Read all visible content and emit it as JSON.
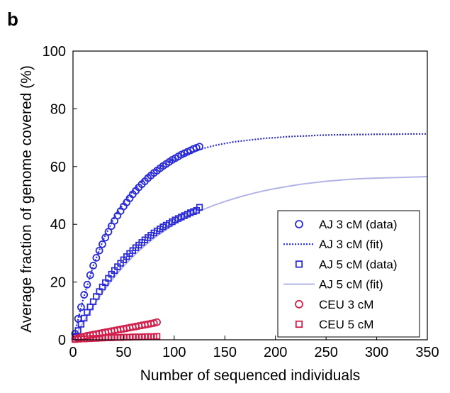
{
  "panel_label": "b",
  "chart_data": {
    "type": "scatter",
    "xlabel": "Number of sequenced individuals",
    "ylabel": "Average fraction of genome covered (%)",
    "xlim": [
      0,
      350
    ],
    "ylim": [
      0,
      100
    ],
    "xticks": [
      0,
      50,
      100,
      150,
      200,
      250,
      300,
      350
    ],
    "yticks": [
      0,
      20,
      40,
      60,
      80,
      100
    ],
    "grid": false,
    "legend_position": "bottom-right",
    "series": [
      {
        "name": "AJ 3 cM (data)",
        "kind": "marker",
        "marker": "circle",
        "color": "#2b2bd6",
        "x": [
          2,
          5,
          8,
          11,
          14,
          17,
          20,
          23,
          26,
          29,
          32,
          35,
          38,
          41,
          44,
          47,
          50,
          53,
          56,
          59,
          62,
          65,
          68,
          71,
          74,
          77,
          80,
          83,
          86,
          89,
          92,
          95,
          98,
          101,
          104,
          107,
          110,
          113,
          116,
          119,
          122,
          125
        ],
        "y": [
          2.1,
          7.3,
          11.3,
          15.6,
          19.1,
          22.4,
          25.7,
          28.4,
          30.9,
          33.1,
          35.4,
          37.4,
          39.4,
          41.2,
          43.0,
          44.6,
          46.2,
          47.6,
          49.0,
          50.4,
          51.6,
          52.8,
          53.9,
          54.9,
          56.0,
          56.9,
          57.8,
          58.6,
          59.4,
          60.2,
          60.9,
          61.6,
          62.3,
          62.9,
          63.5,
          64.1,
          64.6,
          65.1,
          65.6,
          66.1,
          66.5,
          66.9
        ]
      },
      {
        "name": "AJ 3 cM (fit)",
        "kind": "line",
        "style": "dotted",
        "color": "#2b2bd6",
        "x": [
          0,
          10,
          20,
          30,
          40,
          50,
          60,
          70,
          80,
          90,
          100,
          110,
          120,
          130,
          140,
          150,
          160,
          170,
          180,
          190,
          200,
          210,
          220,
          230,
          240,
          250,
          260,
          270,
          280,
          290,
          300,
          310,
          320,
          330,
          340,
          350
        ],
        "y": [
          0,
          14.0,
          25.6,
          34.7,
          41.8,
          47.4,
          52.0,
          55.6,
          58.5,
          60.8,
          62.7,
          64.2,
          65.4,
          66.4,
          67.3,
          68.0,
          68.6,
          69.0,
          69.4,
          69.8,
          70.0,
          70.3,
          70.5,
          70.6,
          70.8,
          70.9,
          71.0,
          71.0,
          71.1,
          71.1,
          71.2,
          71.2,
          71.2,
          71.3,
          71.3,
          71.3
        ]
      },
      {
        "name": "AJ 5 cM (data)",
        "kind": "marker",
        "marker": "square",
        "color": "#2b2bd6",
        "x": [
          2,
          5,
          8,
          11,
          14,
          17,
          20,
          23,
          26,
          29,
          32,
          35,
          38,
          41,
          44,
          47,
          50,
          53,
          56,
          59,
          62,
          65,
          68,
          71,
          74,
          77,
          80,
          83,
          86,
          89,
          92,
          95,
          98,
          101,
          104,
          107,
          110,
          113,
          116,
          119,
          122,
          125
        ],
        "y": [
          1.0,
          3.2,
          5.4,
          7.5,
          9.5,
          11.4,
          13.2,
          15.0,
          16.7,
          18.3,
          19.8,
          21.3,
          22.7,
          24.0,
          25.3,
          26.5,
          27.7,
          28.8,
          29.9,
          30.9,
          31.9,
          32.8,
          33.7,
          34.6,
          35.4,
          36.2,
          37.0,
          37.7,
          38.4,
          39.1,
          39.7,
          40.3,
          40.9,
          41.5,
          42.0,
          42.5,
          43.0,
          43.5,
          44.0,
          44.4,
          44.8,
          45.9
        ]
      },
      {
        "name": "AJ 5 cM (fit)",
        "kind": "line",
        "style": "solid",
        "color": "#b3b3e6",
        "x": [
          0,
          10,
          20,
          30,
          40,
          50,
          60,
          70,
          80,
          90,
          100,
          110,
          120,
          130,
          140,
          150,
          160,
          170,
          180,
          190,
          200,
          210,
          220,
          230,
          240,
          250,
          260,
          270,
          280,
          290,
          300,
          310,
          320,
          330,
          340,
          350
        ],
        "y": [
          0,
          6.0,
          11.7,
          16.8,
          21.4,
          25.5,
          29.1,
          32.3,
          35.2,
          37.7,
          40.0,
          41.9,
          43.7,
          45.3,
          46.7,
          47.9,
          49.0,
          50.0,
          50.9,
          51.7,
          52.4,
          53.0,
          53.6,
          54.1,
          54.5,
          54.9,
          55.2,
          55.5,
          55.7,
          55.9,
          56.0,
          56.1,
          56.2,
          56.3,
          56.4,
          56.5
        ]
      },
      {
        "name": "CEU 3 cM",
        "kind": "marker",
        "marker": "circle",
        "color": "#d11e4a",
        "x": [
          2,
          5,
          8,
          11,
          14,
          17,
          20,
          23,
          26,
          29,
          32,
          35,
          38,
          41,
          44,
          47,
          50,
          53,
          56,
          59,
          62,
          65,
          68,
          71,
          74,
          77,
          80,
          83
        ],
        "y": [
          0.3,
          0.6,
          0.9,
          1.1,
          1.4,
          1.6,
          1.8,
          2.0,
          2.2,
          2.4,
          2.6,
          2.8,
          3.0,
          3.2,
          3.4,
          3.6,
          3.8,
          4.0,
          4.2,
          4.4,
          4.6,
          4.8,
          5.0,
          5.2,
          5.4,
          5.6,
          5.8,
          6.1
        ]
      },
      {
        "name": "CEU 5 cM",
        "kind": "marker",
        "marker": "square",
        "color": "#d11e4a",
        "x": [
          2,
          5,
          8,
          11,
          14,
          17,
          20,
          23,
          26,
          29,
          32,
          35,
          38,
          41,
          44,
          47,
          50,
          53,
          56,
          59,
          62,
          65,
          68,
          71,
          74,
          77,
          80,
          83
        ],
        "y": [
          0.1,
          0.2,
          0.3,
          0.3,
          0.4,
          0.4,
          0.5,
          0.5,
          0.6,
          0.6,
          0.7,
          0.7,
          0.7,
          0.8,
          0.8,
          0.8,
          0.9,
          0.9,
          0.9,
          1.0,
          1.0,
          1.0,
          1.0,
          1.1,
          1.1,
          1.1,
          1.1,
          1.2
        ]
      }
    ]
  }
}
